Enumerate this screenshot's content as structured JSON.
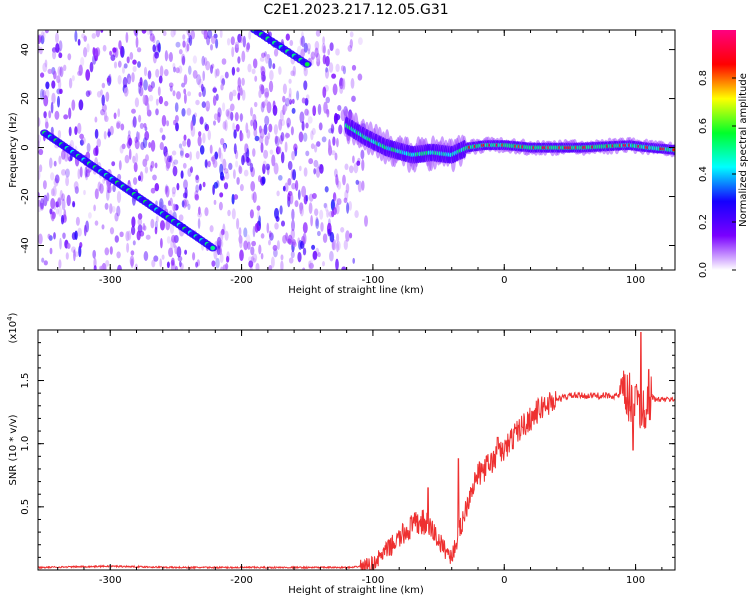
{
  "title": "C2E1.2023.217.12.05.G31",
  "chart_data": [
    {
      "type": "heatmap",
      "xlabel": "Height of straight line (km)",
      "ylabel": "Frequency (Hz)",
      "xlim": [
        -355,
        130
      ],
      "ylim": [
        -50,
        48
      ],
      "xticks": [
        -300,
        -200,
        -100,
        0,
        100
      ],
      "yticks": [
        -40,
        -20,
        0,
        20,
        40
      ],
      "xtick_labels": [
        "-300",
        "-200",
        "-100",
        "0",
        "100"
      ],
      "ytick_labels": [
        "-40",
        "-20",
        "0",
        "20",
        "40"
      ],
      "colorbar": {
        "label": "Normalized spectral amplitude",
        "range": [
          0,
          1
        ],
        "ticks": [
          0.0,
          0.2,
          0.4,
          0.6,
          0.8
        ],
        "tick_labels": [
          "0.0",
          "0.2",
          "0.4",
          "0.6",
          "0.8"
        ],
        "colormap": [
          "#ffffff",
          "#7a00ff",
          "#1500ff",
          "#00ffff",
          "#00ff2a",
          "#ffff00",
          "#ff0000",
          "#ff0080"
        ]
      },
      "features": {
        "descending_track": {
          "x": [
            -350,
            -222
          ],
          "y": [
            6,
            -41
          ]
        },
        "upper_track": {
          "x": [
            -190,
            -150
          ],
          "y": [
            48,
            34
          ]
        },
        "noise_region_x": [
          -355,
          -105
        ],
        "signal_band": {
          "x": [
            -120,
            130
          ],
          "y": [
            [
              -120,
              9
            ],
            [
              -105,
              4
            ],
            [
              -90,
              0
            ],
            [
              -70,
              -3
            ],
            [
              -55,
              -2
            ],
            [
              -40,
              -3
            ],
            [
              -28,
              0
            ],
            [
              -15,
              1
            ],
            [
              0,
              1
            ],
            [
              20,
              0
            ],
            [
              60,
              0
            ],
            [
              95,
              1
            ],
            [
              110,
              0
            ],
            [
              130,
              -1
            ]
          ]
        }
      }
    },
    {
      "type": "line",
      "xlabel": "Height of straight line (km)",
      "ylabel": "SNR (10 * v/v)",
      "y_multiplier": "(x10",
      "y_multiplier_exp": "4",
      "y_multiplier_close": ")",
      "xlim": [
        -355,
        130
      ],
      "ylim": [
        0,
        1.9
      ],
      "xticks": [
        -300,
        -200,
        -100,
        0,
        100
      ],
      "yticks": [
        0.5,
        1.0,
        1.5
      ],
      "xtick_labels": [
        "-300",
        "-200",
        "-100",
        "0",
        "100"
      ],
      "ytick_labels": [
        "0.5",
        "1.0",
        "1.5"
      ],
      "series": [
        {
          "color": "#ee3030",
          "x": [
            -355,
            -300,
            -250,
            -200,
            -150,
            -115,
            -100,
            -90,
            -80,
            -70,
            -62,
            -55,
            -48,
            -40,
            -33,
            -25,
            -20,
            -10,
            0,
            10,
            20,
            30,
            40,
            50,
            60,
            70,
            80,
            90,
            95,
            100,
            105,
            110,
            115,
            120,
            130
          ],
          "y": [
            0.02,
            0.03,
            0.02,
            0.02,
            0.02,
            0.02,
            0.05,
            0.15,
            0.25,
            0.35,
            0.38,
            0.32,
            0.2,
            0.1,
            0.35,
            0.65,
            0.75,
            0.85,
            0.95,
            1.1,
            1.2,
            1.3,
            1.35,
            1.38,
            1.38,
            1.38,
            1.38,
            1.38,
            1.35,
            1.3,
            1.25,
            1.4,
            1.35,
            1.35,
            1.35
          ],
          "spikes": [
            [
              -35,
              0.88
            ],
            [
              -58,
              0.65
            ],
            [
              -5,
              1.05
            ],
            [
              100,
              1.45
            ],
            [
              104,
              1.88
            ],
            [
              98,
              0.95
            ]
          ]
        }
      ]
    }
  ]
}
